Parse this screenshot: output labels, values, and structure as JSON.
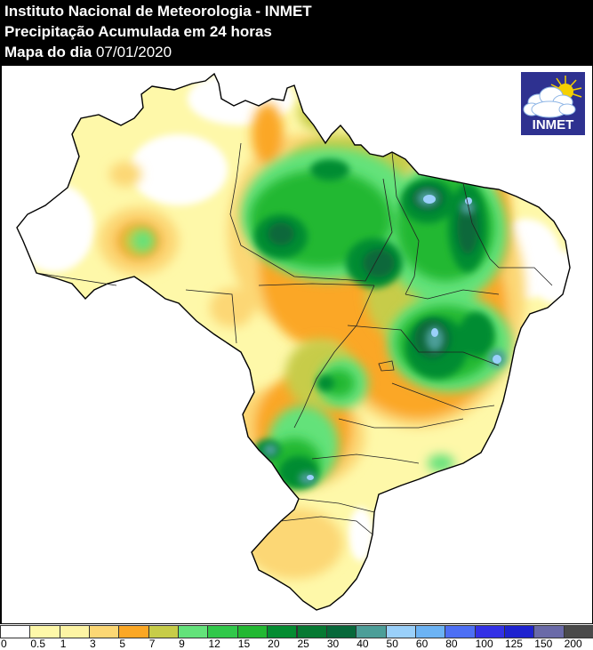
{
  "header": {
    "line1": "Instituto Nacional de Meteorologia - INMET",
    "line2": "Precipitação Acumulada em 24 horas",
    "line3_label": "Mapa do dia",
    "line3_date": "07/01/2020"
  },
  "logo": {
    "text": "INMET",
    "icon": "cloud-sun-icon",
    "background": "#2e3190"
  },
  "map": {
    "region": "Brasil",
    "variable": "Precipitação acumulada 24h (mm)"
  },
  "legend": {
    "bins": [
      {
        "from": "0",
        "color": "#ffffff"
      },
      {
        "from": "0.5",
        "color": "#fef8a9"
      },
      {
        "from": "1",
        "color": "#fdf4a4"
      },
      {
        "from": "3",
        "color": "#fcd774"
      },
      {
        "from": "5",
        "color": "#fba725"
      },
      {
        "from": "7",
        "color": "#c7cc48"
      },
      {
        "from": "9",
        "color": "#63e27a"
      },
      {
        "from": "12",
        "color": "#31c84a"
      },
      {
        "from": "15",
        "color": "#23b832"
      },
      {
        "from": "20",
        "color": "#048c31"
      },
      {
        "from": "25",
        "color": "#067932"
      },
      {
        "from": "30",
        "color": "#07683a"
      },
      {
        "from": "40",
        "color": "#4c9e98"
      },
      {
        "from": "50",
        "color": "#9ad0fa"
      },
      {
        "from": "60",
        "color": "#6cb3f4"
      },
      {
        "from": "80",
        "color": "#4d6ff4"
      },
      {
        "from": "100",
        "color": "#3331e6"
      },
      {
        "from": "125",
        "color": "#1e23cf"
      },
      {
        "from": "150",
        "color": "#6a6aa8"
      },
      {
        "from": "200",
        "color": "#4a4a4a"
      }
    ]
  }
}
